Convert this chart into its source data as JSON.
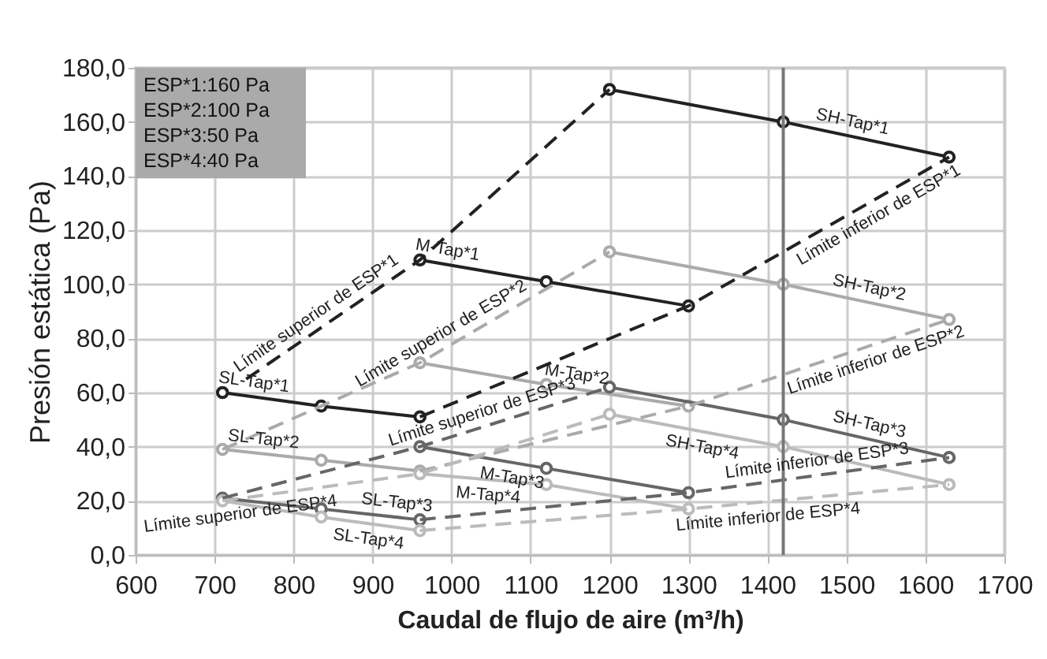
{
  "chart_data": {
    "type": "line",
    "xlabel": "Caudal de flujo de aire (m³/h)",
    "ylabel": "Presión estática (Pa)",
    "xlim": [
      600,
      1700
    ],
    "xticks": [
      600,
      700,
      800,
      900,
      1000,
      1100,
      1200,
      1300,
      1400,
      1500,
      1600,
      1700
    ],
    "ylim": [
      0,
      180
    ],
    "yticks": [
      {
        "value": 0,
        "label": "0,0"
      },
      {
        "value": 20,
        "label": "20,0"
      },
      {
        "value": 40,
        "label": "40,0"
      },
      {
        "value": 60,
        "label": "60,0"
      },
      {
        "value": 80,
        "label": "80,0"
      },
      {
        "value": 100,
        "label": "100,0"
      },
      {
        "value": 120,
        "label": "120,0"
      },
      {
        "value": 140,
        "label": "140,0"
      },
      {
        "value": 160,
        "label": "160,0"
      },
      {
        "value": 180,
        "label": "180,0"
      }
    ],
    "grid": true,
    "marker": "circle",
    "line_style": "solid",
    "annotations": [
      "ESP*1:160 Pa",
      "ESP*2:100 Pa",
      "ESP*3:50 Pa",
      "ESP*4:40 Pa"
    ],
    "ref_lines": [
      {
        "axis": "x",
        "value": 1420,
        "color": "#777777"
      }
    ],
    "series": [
      {
        "name": "SH-Tap*1",
        "color": "#222222",
        "x": [
          1200,
          1420,
          1630
        ],
        "values": [
          172,
          160,
          147
        ]
      },
      {
        "name": "M-Tap*1",
        "color": "#222222",
        "x": [
          960,
          1120,
          1300
        ],
        "values": [
          109,
          101,
          92
        ]
      },
      {
        "name": "SL-Tap*1",
        "color": "#222222",
        "x": [
          710,
          835,
          960
        ],
        "values": [
          60,
          55,
          51
        ]
      },
      {
        "name": "SH-Tap*2",
        "color": "#aaaaaa",
        "x": [
          1200,
          1420,
          1630
        ],
        "values": [
          112,
          100,
          87
        ]
      },
      {
        "name": "M-Tap*2",
        "color": "#aaaaaa",
        "x": [
          960,
          1120,
          1300
        ],
        "values": [
          71,
          63,
          55
        ]
      },
      {
        "name": "SL-Tap*2",
        "color": "#aaaaaa",
        "x": [
          710,
          835,
          960
        ],
        "values": [
          39,
          35,
          31
        ]
      },
      {
        "name": "SH-Tap*3",
        "color": "#666666",
        "x": [
          1200,
          1420,
          1630
        ],
        "values": [
          62,
          50,
          36
        ]
      },
      {
        "name": "M-Tap*3",
        "color": "#666666",
        "x": [
          960,
          1120,
          1300
        ],
        "values": [
          40,
          32,
          23
        ]
      },
      {
        "name": "SL-Tap*3",
        "color": "#666666",
        "x": [
          710,
          835,
          960
        ],
        "values": [
          21,
          17,
          13
        ]
      },
      {
        "name": "SH-Tap*4",
        "color": "#bbbbbb",
        "x": [
          1200,
          1420,
          1630
        ],
        "values": [
          52,
          40,
          26
        ]
      },
      {
        "name": "M-Tap*4",
        "color": "#bbbbbb",
        "x": [
          960,
          1120,
          1300
        ],
        "values": [
          30,
          26,
          17
        ]
      },
      {
        "name": "SL-Tap*4",
        "color": "#bbbbbb",
        "x": [
          710,
          835,
          960
        ],
        "values": [
          20,
          14,
          9
        ]
      },
      {
        "name": "Límite superior de ESP*1",
        "color": "#222222",
        "line_style": "dashed",
        "marker": "none",
        "x": [
          740,
          960,
          1200
        ],
        "values": [
          65,
          109,
          172
        ]
      },
      {
        "name": "Límite inferior de ESP*1",
        "color": "#222222",
        "line_style": "dashed",
        "marker": "none",
        "x": [
          960,
          1300,
          1630
        ],
        "values": [
          51,
          92,
          147
        ]
      },
      {
        "name": "Límite superior de ESP*2",
        "color": "#aaaaaa",
        "line_style": "dashed",
        "marker": "none",
        "x": [
          710,
          960,
          1200
        ],
        "values": [
          39,
          71,
          112
        ]
      },
      {
        "name": "Límite inferior de ESP*2",
        "color": "#aaaaaa",
        "line_style": "dashed",
        "marker": "none",
        "x": [
          960,
          1300,
          1630
        ],
        "values": [
          31,
          55,
          87
        ]
      },
      {
        "name": "Límite superior de ESP*3",
        "color": "#666666",
        "line_style": "dashed",
        "marker": "none",
        "x": [
          710,
          960,
          1200
        ],
        "values": [
          21,
          40,
          62
        ]
      },
      {
        "name": "Límite inferior de ESP*3",
        "color": "#666666",
        "line_style": "dashed",
        "marker": "none",
        "x": [
          960,
          1300,
          1630
        ],
        "values": [
          13,
          23,
          36
        ]
      },
      {
        "name": "Límite superior de ESP*4",
        "color": "#bbbbbb",
        "line_style": "dashed",
        "marker": "none",
        "x": [
          710,
          960,
          1200
        ],
        "values": [
          20,
          30,
          52
        ]
      },
      {
        "name": "Límite inferior de ESP*4",
        "color": "#bbbbbb",
        "line_style": "dashed",
        "marker": "none",
        "x": [
          960,
          1300,
          1630
        ],
        "values": [
          9,
          17,
          26
        ]
      }
    ]
  }
}
